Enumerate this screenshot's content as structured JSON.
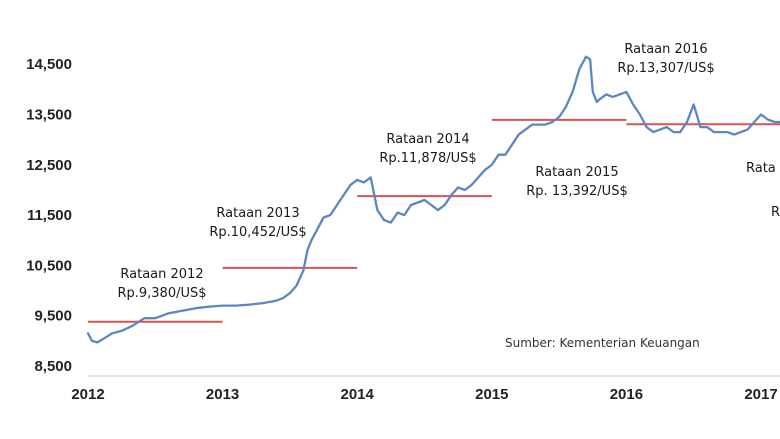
{
  "chart_data": {
    "type": "line",
    "title": "",
    "xlabel": "",
    "ylabel": "",
    "ylim": [
      8500,
      14800
    ],
    "xlim": [
      2012,
      2017.15
    ],
    "y_ticks": [
      "8,500",
      "9,500",
      "10,500",
      "11,500",
      "12,500",
      "13,500",
      "14,500"
    ],
    "x_ticks": [
      "2012",
      "2013",
      "2014",
      "2015",
      "2016",
      "2017"
    ],
    "grid": false,
    "colors": {
      "series": "#5b86c0",
      "average": "#d9534f"
    },
    "series": [
      {
        "x": [
          2012.0,
          2012.03,
          2012.07,
          2012.12,
          2012.18,
          2012.25,
          2012.33,
          2012.42,
          2012.5,
          2012.6,
          2012.7,
          2012.8,
          2012.9,
          2013.0,
          2013.1,
          2013.2,
          2013.3,
          2013.4,
          2013.45,
          2013.5,
          2013.55,
          2013.6,
          2013.63,
          2013.66,
          2013.7,
          2013.75,
          2013.8,
          2013.85,
          2013.9,
          2013.95,
          2014.0,
          2014.05,
          2014.1,
          2014.15,
          2014.2,
          2014.25,
          2014.3,
          2014.35,
          2014.4,
          2014.45,
          2014.5,
          2014.55,
          2014.6,
          2014.65,
          2014.7,
          2014.75,
          2014.8,
          2014.85,
          2014.9,
          2014.95,
          2015.0,
          2015.05,
          2015.1,
          2015.15,
          2015.2,
          2015.25,
          2015.3,
          2015.35,
          2015.4,
          2015.45,
          2015.5,
          2015.55,
          2015.6,
          2015.65,
          2015.7,
          2015.73,
          2015.75,
          2015.78,
          2015.8,
          2015.85,
          2015.9,
          2015.95,
          2016.0,
          2016.05,
          2016.1,
          2016.15,
          2016.2,
          2016.25,
          2016.3,
          2016.35,
          2016.4,
          2016.45,
          2016.5,
          2016.55,
          2016.6,
          2016.65,
          2016.7,
          2016.75,
          2016.8,
          2016.85,
          2016.9,
          2016.95,
          2017.0,
          2017.05,
          2017.1,
          2017.15
        ],
        "values": [
          9150,
          9000,
          8970,
          9050,
          9150,
          9200,
          9300,
          9450,
          9450,
          9550,
          9600,
          9650,
          9680,
          9700,
          9700,
          9720,
          9750,
          9800,
          9850,
          9950,
          10100,
          10400,
          10800,
          11000,
          11200,
          11450,
          11500,
          11700,
          11900,
          12100,
          12200,
          12150,
          12250,
          11600,
          11400,
          11350,
          11550,
          11500,
          11700,
          11750,
          11800,
          11700,
          11600,
          11700,
          11900,
          12050,
          12000,
          12100,
          12250,
          12400,
          12500,
          12700,
          12700,
          12900,
          13100,
          13200,
          13300,
          13300,
          13300,
          13350,
          13450,
          13650,
          13950,
          14400,
          14650,
          14600,
          13950,
          13750,
          13800,
          13900,
          13850,
          13900,
          13950,
          13700,
          13500,
          13250,
          13150,
          13200,
          13250,
          13150,
          13150,
          13350,
          13700,
          13250,
          13250,
          13150,
          13150,
          13150,
          13100,
          13150,
          13200,
          13350,
          13500,
          13400,
          13350,
          13350
        ]
      }
    ],
    "averages": [
      {
        "label_year": "Rataan 2012",
        "label_value": "Rp.9,380/US$",
        "y": 9380,
        "x_start": 2012,
        "x_end": 2013
      },
      {
        "label_year": "Rataan 2013",
        "label_value": "Rp.10,452/US$",
        "y": 10452,
        "x_start": 2013,
        "x_end": 2014
      },
      {
        "label_year": "Rataan 2014",
        "label_value": "Rp.11,878/US$",
        "y": 11878,
        "x_start": 2014,
        "x_end": 2015
      },
      {
        "label_year": "Rataan 2015",
        "label_value": "Rp. 13,392/US$",
        "y": 13392,
        "x_start": 2015,
        "x_end": 2016
      },
      {
        "label_year": "Rataan 2016",
        "label_value": "Rp.13,307/US$",
        "y": 13307,
        "x_start": 2016,
        "x_end": 2017.15
      }
    ],
    "clipped_labels": [
      "Rata",
      "R"
    ],
    "source": "Sumber: Kementerian Keuangan"
  }
}
